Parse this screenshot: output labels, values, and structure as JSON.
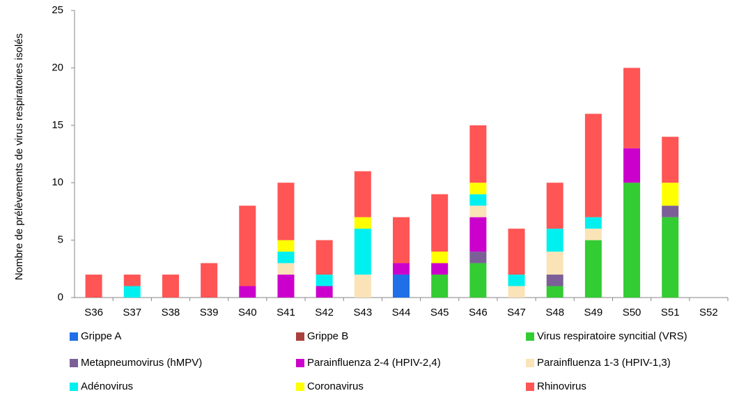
{
  "chart_data": {
    "type": "stacked-bar",
    "y_label": "Nombre de prélèvements de virus respiratoires isolés",
    "categories": [
      "S36",
      "S37",
      "S38",
      "S39",
      "S40",
      "S41",
      "S42",
      "S43",
      "S44",
      "S45",
      "S46",
      "S47",
      "S48",
      "S49",
      "S50",
      "S51",
      "S52"
    ],
    "ylim": [
      0,
      25
    ],
    "yticks": [
      0,
      5,
      10,
      15,
      20,
      25
    ],
    "grid": false,
    "series": [
      {
        "name": "Grippe A",
        "color": "#1f6fe8",
        "values": [
          0,
          0,
          0,
          0,
          0,
          0,
          0,
          0,
          2,
          0,
          0,
          0,
          0,
          0,
          0,
          0,
          0
        ]
      },
      {
        "name": "Grippe B",
        "color": "#a9403d",
        "values": [
          0,
          0,
          0,
          0,
          0,
          0,
          0,
          0,
          0,
          0,
          0,
          0,
          0,
          0,
          0,
          0,
          0
        ]
      },
      {
        "name": "Virus respiratoire syncitial (VRS)",
        "color": "#33cc33",
        "values": [
          0,
          0,
          0,
          0,
          0,
          0,
          0,
          0,
          0,
          2,
          3,
          0,
          1,
          5,
          10,
          7,
          0
        ]
      },
      {
        "name": "Metapneumovirus (hMPV)",
        "color": "#7b5f96",
        "values": [
          0,
          0,
          0,
          0,
          0,
          0,
          0,
          0,
          0,
          0,
          1,
          0,
          1,
          0,
          0,
          1,
          0
        ]
      },
      {
        "name": "Parainfluenza 2-4 (HPIV-2,4)",
        "color": "#cc00cc",
        "values": [
          0,
          0,
          0,
          0,
          1,
          2,
          1,
          0,
          1,
          1,
          3,
          0,
          0,
          0,
          3,
          0,
          0
        ]
      },
      {
        "name": "Parainfluenza 1-3 (HPIV-1,3)",
        "color": "#fbe3b8",
        "values": [
          0,
          0,
          0,
          0,
          0,
          1,
          0,
          2,
          0,
          0,
          1,
          1,
          2,
          1,
          0,
          0,
          0
        ]
      },
      {
        "name": "Adénovirus",
        "color": "#00f0f0",
        "values": [
          0,
          1,
          0,
          0,
          0,
          1,
          1,
          4,
          0,
          0,
          1,
          1,
          2,
          1,
          0,
          0,
          0
        ]
      },
      {
        "name": "Coronavirus",
        "color": "#ffff00",
        "values": [
          0,
          0,
          0,
          0,
          0,
          1,
          0,
          1,
          0,
          1,
          1,
          0,
          0,
          0,
          0,
          2,
          0
        ]
      },
      {
        "name": "Rhinovirus",
        "color": "#ff5555",
        "values": [
          2,
          1,
          2,
          3,
          7,
          5,
          3,
          4,
          4,
          5,
          5,
          4,
          4,
          9,
          7,
          4,
          0
        ]
      }
    ]
  }
}
